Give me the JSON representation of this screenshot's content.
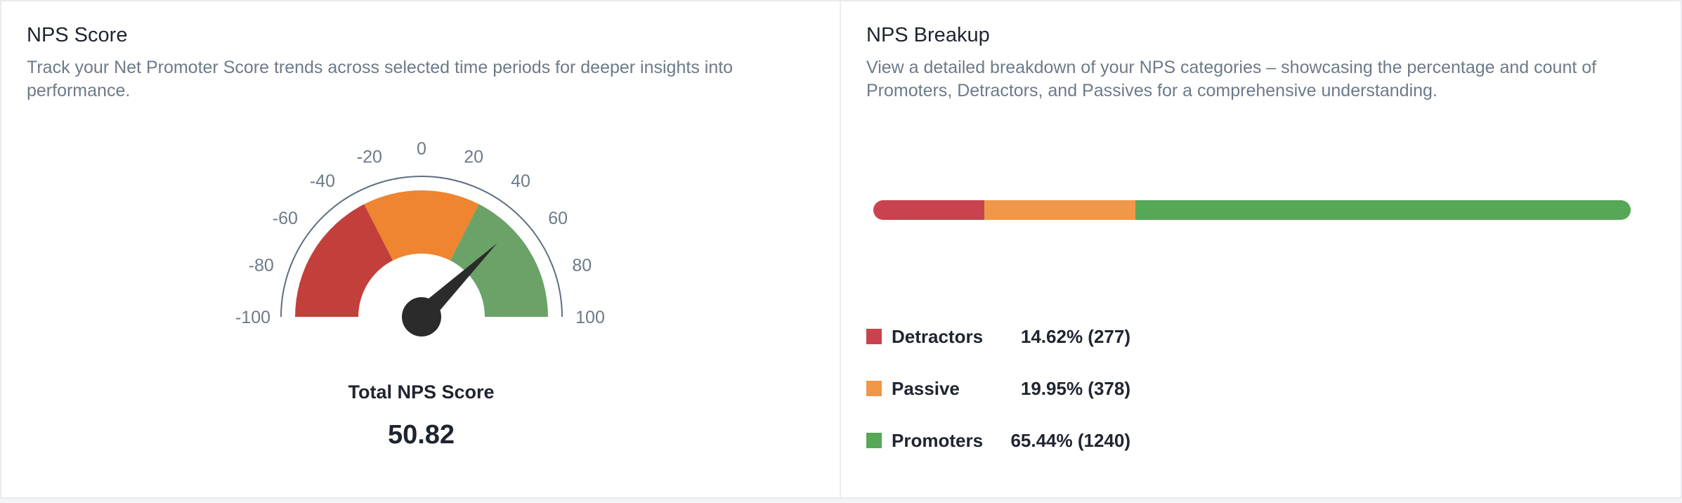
{
  "nps_score_card": {
    "title": "NPS Score",
    "description": "Track your Net Promoter Score trends across selected time periods for deeper insights into performance.",
    "gauge": {
      "min": -100,
      "max": 100,
      "value": 50.82,
      "ticks": [
        "-100",
        "-80",
        "-60",
        "-40",
        "-20",
        "0",
        "20",
        "40",
        "60",
        "80",
        "100"
      ],
      "bands": [
        {
          "from": -100,
          "to": -30,
          "color": "#c23f3b"
        },
        {
          "from": -30,
          "to": 30,
          "color": "#ef8431"
        },
        {
          "from": 30,
          "to": 100,
          "color": "#6aa267"
        }
      ]
    },
    "total_label": "Total NPS Score",
    "total_value": "50.82"
  },
  "nps_breakup_card": {
    "title": "NPS Breakup",
    "description": "View a detailed breakdown of your NPS categories – showcasing the percentage and count of Promoters, Detractors, and Passives for a comprehensive understanding.",
    "segments": [
      {
        "name": "Detractors",
        "percent": 14.62,
        "label": "14.62% (277)",
        "color": "#c9434e"
      },
      {
        "name": "Passive",
        "percent": 19.95,
        "label": "19.95% (378)",
        "color": "#f0974a"
      },
      {
        "name": "Promoters",
        "percent": 65.44,
        "label": "65.44% (1240)",
        "color": "#56a856"
      }
    ]
  },
  "colors": {
    "text_muted": "#6d7a8a",
    "needle": "#2b2b2b",
    "gauge_outline": "#5d6e80"
  }
}
